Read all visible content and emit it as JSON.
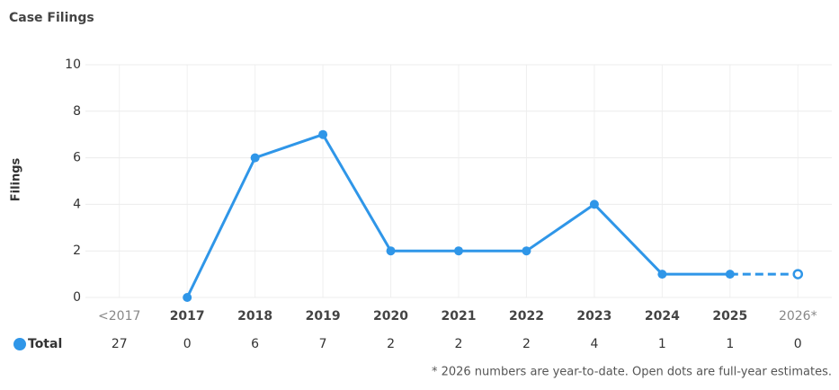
{
  "chart_data": {
    "type": "line",
    "title": "Case Filings",
    "y_label": "Filings",
    "categories": [
      "<2017",
      "2017",
      "2018",
      "2019",
      "2020",
      "2021",
      "2022",
      "2023",
      "2024",
      "2025",
      "2026*"
    ],
    "series": [
      {
        "name": "Total",
        "color": "#2f96e8",
        "values": [
          null,
          0,
          6,
          7,
          2,
          2,
          2,
          4,
          1,
          1,
          null
        ]
      }
    ],
    "estimates": [
      null,
      null,
      null,
      null,
      null,
      null,
      null,
      null,
      null,
      null,
      1
    ],
    "totals": [
      27,
      0,
      6,
      7,
      2,
      2,
      2,
      4,
      1,
      1,
      0
    ],
    "ylim": [
      0,
      10
    ],
    "yticks": [
      0,
      2,
      4,
      6,
      8,
      10
    ],
    "grid": true,
    "footnote": "* 2026 numbers are year-to-date. Open dots are full-year estimates."
  }
}
